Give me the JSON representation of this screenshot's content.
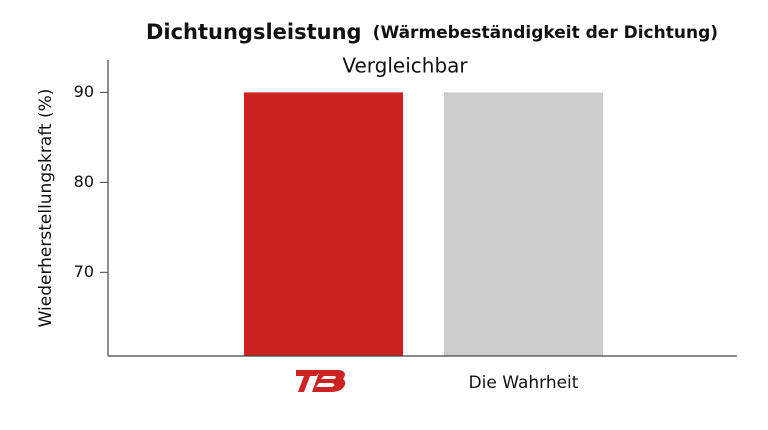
{
  "chart_data": {
    "type": "bar",
    "title": "Dichtungsleistung",
    "subtitle": "(Wärmebeständigkeit der Dichtung)",
    "annotation": "Vergleichbar",
    "y_label": "Wiederherstellungskraft (%)",
    "categories": [
      null,
      "Die Wahrheit"
    ],
    "values": [
      90,
      90
    ],
    "colors": [
      "#cc2222",
      "#cccccc"
    ],
    "ylim": [
      60.7,
      93.6
    ],
    "yticks": [
      70,
      80,
      90
    ],
    "grid": false
  }
}
